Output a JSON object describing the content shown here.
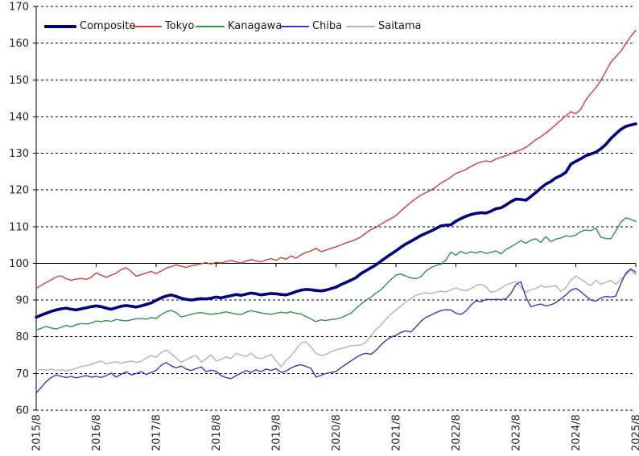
{
  "chart_data": {
    "type": "line",
    "title": "",
    "xlabel": "",
    "ylabel": "",
    "x_tick_labels": [
      "2015/8",
      "2016/8",
      "2017/8",
      "2018/8",
      "2019/8",
      "2020/8",
      "2021/8",
      "2022/8",
      "2023/8",
      "2024/8",
      "2025/8"
    ],
    "x_frequency": "monthly",
    "points_count": 121,
    "y_ticks": [
      60,
      70,
      80,
      90,
      100,
      110,
      120,
      130,
      140,
      150,
      160,
      170
    ],
    "ylim": [
      60,
      170
    ],
    "axis_cross_value": 100,
    "gridlines": "dashed-horizontal",
    "legend_position": "top-left-inside",
    "grid_color": "#000000",
    "series": [
      {
        "name": "Composite",
        "color": "#000080",
        "width": 3.6,
        "values": [
          85.3,
          85.9,
          86.4,
          86.9,
          87.3,
          87.6,
          87.8,
          87.5,
          87.3,
          87.6,
          87.9,
          88.2,
          88.4,
          88.2,
          87.8,
          87.5,
          87.9,
          88.3,
          88.5,
          88.3,
          88.1,
          88.4,
          88.8,
          89.2,
          89.9,
          90.6,
          91.1,
          91.4,
          91.0,
          90.5,
          90.2,
          90.0,
          90.2,
          90.4,
          90.3,
          90.5,
          90.8,
          90.6,
          90.9,
          91.2,
          91.5,
          91.3,
          91.6,
          91.9,
          91.7,
          91.4,
          91.6,
          91.8,
          91.7,
          91.5,
          91.4,
          91.8,
          92.3,
          92.7,
          92.9,
          92.8,
          92.6,
          92.5,
          92.7,
          93.1,
          93.5,
          94.2,
          94.8,
          95.4,
          96.1,
          97.2,
          98.0,
          98.8,
          99.6,
          100.6,
          101.6,
          102.5,
          103.4,
          104.4,
          105.3,
          106.0,
          106.8,
          107.6,
          108.2,
          108.8,
          109.5,
          110.2,
          110.4,
          110.5,
          111.5,
          112.2,
          112.8,
          113.3,
          113.6,
          113.8,
          113.7,
          114.2,
          114.9,
          115.1,
          115.9,
          116.8,
          117.5,
          117.4,
          117.2,
          118.2,
          119.3,
          120.5,
          121.6,
          122.3,
          123.3,
          123.9,
          124.8,
          127.0,
          127.8,
          128.5,
          129.3,
          129.8,
          130.3,
          131.2,
          132.4,
          134.0,
          135.3,
          136.5,
          137.3,
          137.7,
          138.0
        ]
      },
      {
        "name": "Tokyo",
        "color": "#dd3a3a",
        "width": 1.4,
        "values": [
          93.2,
          94.0,
          94.8,
          95.5,
          96.3,
          96.6,
          95.8,
          95.4,
          95.7,
          95.9,
          95.6,
          96.2,
          97.4,
          96.8,
          96.2,
          96.8,
          97.3,
          98.3,
          98.8,
          97.8,
          96.5,
          96.9,
          97.4,
          97.8,
          97.2,
          97.9,
          98.7,
          99.1,
          99.6,
          99.2,
          98.9,
          99.3,
          99.6,
          99.9,
          100.2,
          99.8,
          100.3,
          100.1,
          100.5,
          100.8,
          100.4,
          100.1,
          100.6,
          101.0,
          100.7,
          100.4,
          100.9,
          101.3,
          100.8,
          101.6,
          101.1,
          102.0,
          101.4,
          102.3,
          103.0,
          103.4,
          104.1,
          103.2,
          103.6,
          104.1,
          104.5,
          105.0,
          105.6,
          106.0,
          106.5,
          107.2,
          108.3,
          109.2,
          109.8,
          110.7,
          111.5,
          112.2,
          113.0,
          114.3,
          115.5,
          116.6,
          117.6,
          118.6,
          119.3,
          119.9,
          120.8,
          121.9,
          122.6,
          123.5,
          124.5,
          125.0,
          125.6,
          126.4,
          127.1,
          127.6,
          127.9,
          127.7,
          128.4,
          128.9,
          129.3,
          129.9,
          130.4,
          130.9,
          131.6,
          132.6,
          133.7,
          134.5,
          135.5,
          136.6,
          137.8,
          139.0,
          140.2,
          141.3,
          140.8,
          142.0,
          144.5,
          146.3,
          147.8,
          149.8,
          152.3,
          154.8,
          156.3,
          157.8,
          159.8,
          161.8,
          163.5
        ]
      },
      {
        "name": "Kanagawa",
        "color": "#2f9447",
        "width": 1.4,
        "values": [
          81.8,
          82.3,
          82.8,
          82.4,
          82.1,
          82.6,
          83.1,
          82.7,
          83.3,
          83.6,
          83.5,
          83.7,
          84.3,
          84.1,
          84.4,
          84.2,
          84.7,
          84.5,
          84.3,
          84.6,
          84.9,
          85.0,
          84.8,
          85.2,
          85.0,
          86.0,
          86.8,
          87.2,
          86.6,
          85.4,
          85.7,
          86.1,
          86.4,
          86.6,
          86.3,
          86.1,
          86.3,
          86.5,
          86.8,
          86.5,
          86.2,
          86.0,
          86.7,
          87.1,
          86.8,
          86.5,
          86.3,
          86.1,
          86.4,
          86.7,
          86.5,
          86.8,
          86.4,
          86.2,
          85.5,
          84.8,
          84.1,
          84.6,
          84.4,
          84.7,
          84.8,
          85.2,
          85.8,
          86.4,
          87.7,
          88.9,
          89.9,
          90.8,
          91.9,
          92.8,
          94.2,
          95.6,
          96.8,
          97.1,
          96.5,
          96.0,
          95.8,
          96.4,
          97.9,
          98.8,
          99.4,
          99.8,
          100.9,
          103.1,
          102.2,
          103.3,
          102.6,
          103.2,
          102.8,
          103.3,
          102.7,
          103.0,
          103.4,
          102.6,
          103.8,
          104.5,
          105.3,
          106.2,
          105.5,
          106.3,
          106.7,
          105.7,
          107.3,
          105.9,
          106.6,
          106.9,
          107.5,
          107.3,
          107.7,
          108.7,
          109.1,
          108.9,
          109.6,
          107.1,
          106.8,
          106.7,
          108.8,
          111.2,
          112.4,
          112.0,
          111.4
        ]
      },
      {
        "name": "Chiba",
        "color": "#3838c8",
        "width": 1.4,
        "values": [
          64.7,
          66.2,
          67.8,
          68.9,
          69.6,
          69.2,
          68.9,
          69.2,
          68.8,
          69.1,
          69.4,
          69.0,
          69.2,
          68.9,
          69.4,
          70.1,
          69.0,
          69.8,
          70.4,
          69.6,
          70.0,
          70.5,
          69.7,
          70.3,
          70.8,
          72.2,
          73.0,
          72.1,
          71.5,
          72.0,
          71.2,
          70.8,
          71.3,
          71.8,
          70.5,
          70.9,
          70.6,
          69.4,
          68.9,
          68.6,
          69.4,
          70.1,
          70.8,
          70.3,
          71.0,
          70.5,
          71.2,
          70.8,
          71.3,
          70.3,
          70.6,
          71.5,
          72.1,
          72.4,
          71.9,
          71.4,
          69.0,
          69.5,
          70.0,
          70.3,
          70.5,
          71.6,
          72.5,
          73.4,
          74.3,
          75.1,
          75.5,
          75.2,
          76.3,
          77.8,
          79.0,
          79.9,
          80.4,
          81.2,
          81.6,
          81.3,
          82.7,
          84.2,
          85.3,
          85.9,
          86.6,
          87.1,
          87.4,
          87.3,
          86.4,
          86.1,
          87.0,
          88.6,
          89.8,
          89.5,
          90.2,
          90.1,
          90.2,
          90.1,
          90.3,
          91.8,
          94.2,
          95.0,
          90.8,
          88.2,
          88.6,
          88.9,
          88.4,
          88.7,
          89.3,
          90.3,
          91.4,
          92.7,
          93.2,
          92.3,
          91.1,
          90.0,
          89.7,
          90.6,
          91.0,
          90.8,
          91.1,
          94.5,
          97.3,
          98.5,
          97.6
        ]
      },
      {
        "name": "Saitama",
        "color": "#b3b3b3",
        "width": 1.4,
        "values": [
          70.8,
          71.1,
          70.9,
          71.2,
          70.8,
          71.0,
          70.7,
          71.0,
          71.4,
          71.9,
          72.1,
          72.4,
          73.0,
          73.4,
          72.6,
          72.9,
          73.2,
          72.8,
          73.1,
          73.4,
          73.0,
          73.3,
          74.2,
          74.9,
          74.4,
          75.7,
          76.4,
          75.4,
          74.2,
          73.1,
          73.7,
          74.4,
          74.9,
          73.1,
          74.0,
          75.1,
          73.4,
          73.8,
          74.5,
          74.1,
          75.5,
          75.0,
          74.6,
          75.5,
          74.3,
          74.0,
          74.6,
          75.2,
          73.5,
          71.8,
          73.5,
          74.8,
          76.5,
          78.3,
          78.6,
          77.2,
          75.4,
          74.9,
          75.2,
          75.9,
          76.4,
          76.8,
          77.1,
          77.5,
          77.6,
          77.8,
          78.5,
          80.3,
          82.0,
          83.2,
          84.8,
          86.2,
          87.3,
          88.4,
          89.5,
          90.4,
          91.3,
          91.7,
          92.0,
          91.8,
          92.1,
          92.4,
          92.2,
          92.8,
          93.3,
          92.8,
          92.5,
          93.1,
          93.9,
          94.3,
          93.6,
          92.1,
          92.4,
          93.2,
          94.1,
          94.6,
          95.1,
          93.5,
          92.1,
          92.8,
          93.1,
          93.9,
          93.5,
          93.7,
          93.9,
          92.4,
          93.3,
          95.4,
          96.5,
          95.7,
          94.8,
          93.9,
          95.4,
          94.3,
          94.8,
          95.4,
          94.3,
          95.7,
          96.8,
          98.2,
          96.9
        ]
      }
    ]
  },
  "legend": {
    "items": [
      "Composite",
      "Tokyo",
      "Kanagawa",
      "Chiba",
      "Saitama"
    ]
  }
}
